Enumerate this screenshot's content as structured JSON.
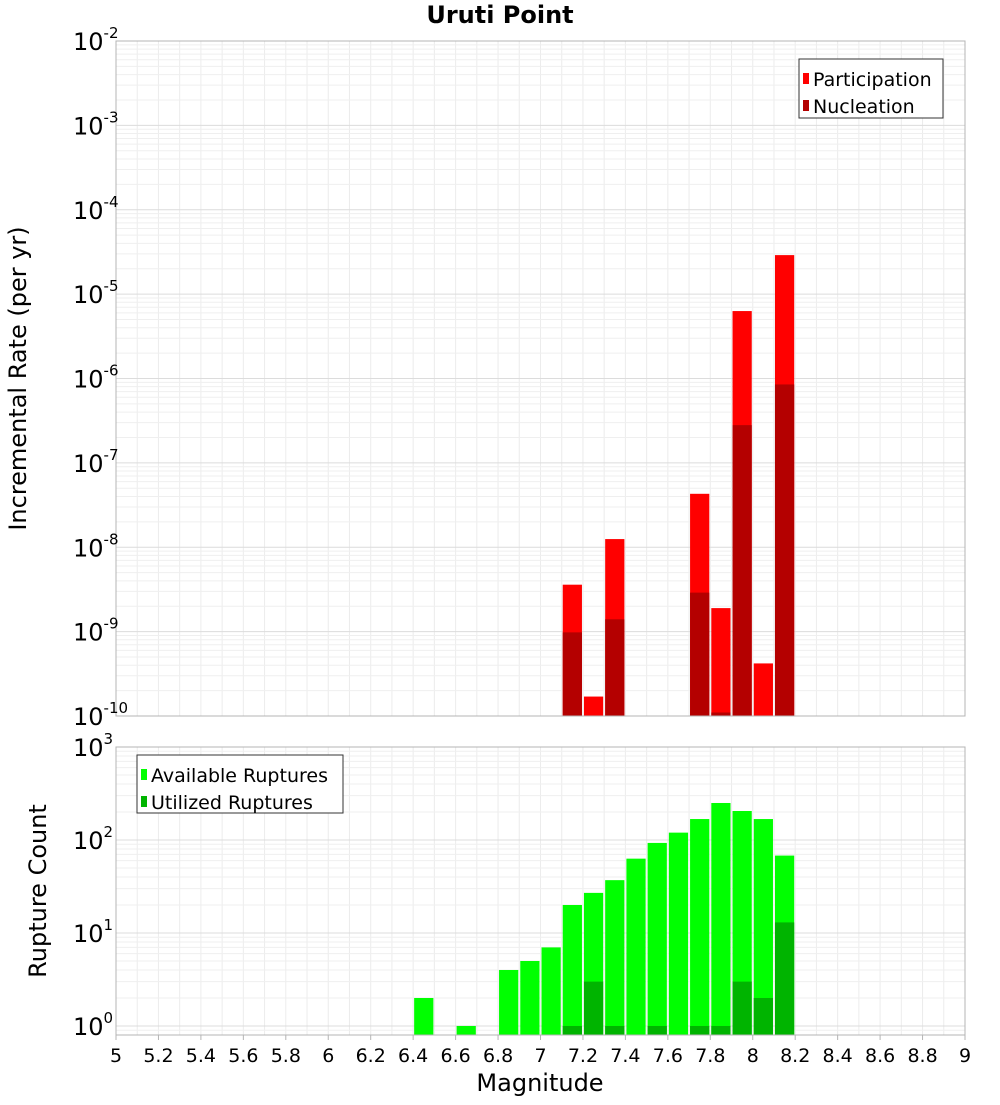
{
  "chart_data": [
    {
      "type": "bar",
      "title": "Uruti Point",
      "xlabel": "",
      "ylabel": "Incremental Rate (per yr)",
      "xlim": [
        5,
        9
      ],
      "ylim": [
        1e-10,
        0.01
      ],
      "yscale": "log",
      "bar_width": 0.1,
      "grid": true,
      "legend_position": "top-right",
      "y_tick_exponents": [
        "-2",
        "-3",
        "-4",
        "-5",
        "-6",
        "-7",
        "-8",
        "-9",
        "-10"
      ],
      "y_tick_base": "10",
      "series": [
        {
          "name": "Participation",
          "color": "#ff0000",
          "x": [
            7.15,
            7.25,
            7.35,
            7.75,
            7.85,
            7.95,
            8.05,
            8.15
          ],
          "values": [
            3.6e-09,
            1.7e-10,
            1.25e-08,
            4.3e-08,
            1.9e-09,
            6.3e-06,
            4.2e-10,
            2.9e-05
          ]
        },
        {
          "name": "Nucleation",
          "color": "#b40000",
          "x": [
            7.15,
            7.35,
            7.75,
            7.85,
            7.95,
            8.15
          ],
          "values": [
            9.8e-10,
            1.4e-09,
            2.9e-09,
            1.1e-10,
            2.8e-07,
            8.5e-07
          ]
        }
      ]
    },
    {
      "type": "bar",
      "title": "",
      "xlabel": "Magnitude",
      "ylabel": "Rupture Count",
      "xlim": [
        5,
        9
      ],
      "ylim": [
        0.8,
        1000
      ],
      "yscale": "log",
      "bar_width": 0.1,
      "grid": true,
      "legend_position": "top-left",
      "x_ticks": [
        "5",
        "5.2",
        "5.4",
        "5.6",
        "5.8",
        "6",
        "6.2",
        "6.4",
        "6.6",
        "6.8",
        "7",
        "7.2",
        "7.4",
        "7.6",
        "7.8",
        "8",
        "8.2",
        "8.4",
        "8.6",
        "8.8",
        "9"
      ],
      "y_tick_exponents": [
        "3",
        "2",
        "1",
        "0"
      ],
      "y_tick_base": "10",
      "series": [
        {
          "name": "Available Ruptures",
          "color": "#00ff00",
          "x": [
            6.45,
            6.65,
            6.85,
            6.95,
            7.05,
            7.15,
            7.25,
            7.35,
            7.45,
            7.55,
            7.65,
            7.75,
            7.85,
            7.95,
            8.05,
            8.15
          ],
          "values": [
            2,
            1,
            4,
            5,
            7,
            20,
            27,
            37,
            63,
            93,
            120,
            168,
            250,
            205,
            168,
            68
          ]
        },
        {
          "name": "Utilized Ruptures",
          "color": "#00b400",
          "x": [
            7.15,
            7.25,
            7.35,
            7.55,
            7.75,
            7.85,
            7.95,
            8.05,
            8.15
          ],
          "values": [
            1,
            3,
            1,
            1,
            1,
            1,
            3,
            2,
            13
          ]
        }
      ]
    }
  ]
}
